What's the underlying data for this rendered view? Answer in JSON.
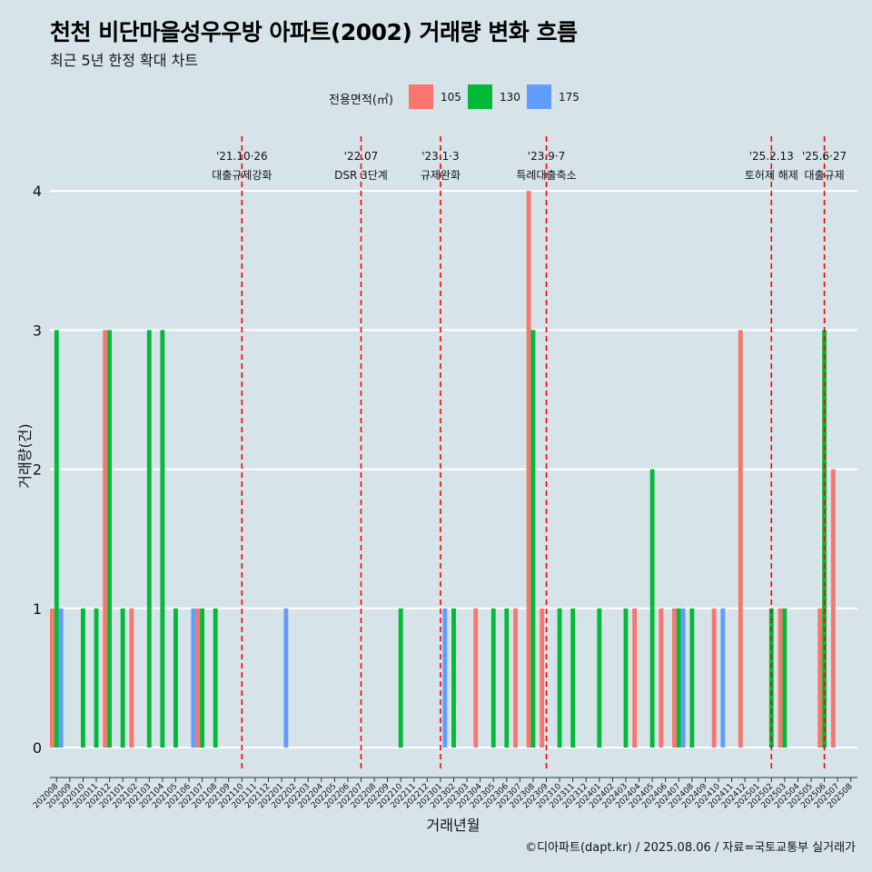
{
  "title": "천천 비단마을성우우방 아파트(2002) 거래량 변화 흐름",
  "subtitle": "최근 5년 한정 확대 차트",
  "caption": "©디아파트(dapt.kr) / 2025.08.06 / 자료=국토교통부 실거래가",
  "colors": {
    "105": "#f8766d",
    "130": "#00ba38",
    "175": "#619cff",
    "background": "#d6e4ea",
    "event_line": "#ff0000"
  },
  "chart_data": {
    "type": "bar",
    "title": "천천 비단마을성우우방 아파트(2002) 거래량 변화 흐름",
    "subtitle": "최근 5년 한정 확대 차트",
    "xlabel": "거래년월",
    "ylabel": "거래량(건)",
    "ylim": [
      0,
      4
    ],
    "yticks": [
      0,
      1,
      2,
      3,
      4
    ],
    "grid": "horizontal",
    "legend": {
      "title": "전용면적(㎡)",
      "position": "top",
      "entries": [
        "105",
        "130",
        "175"
      ]
    },
    "categories": [
      "202008",
      "202009",
      "202010",
      "202011",
      "202012",
      "202101",
      "202102",
      "202103",
      "202104",
      "202105",
      "202106",
      "202107",
      "202108",
      "202109",
      "202110",
      "202111",
      "202112",
      "202201",
      "202202",
      "202203",
      "202204",
      "202205",
      "202206",
      "202207",
      "202208",
      "202209",
      "202210",
      "202211",
      "202212",
      "202301",
      "202302",
      "202303",
      "202304",
      "202305",
      "202306",
      "202307",
      "202308",
      "202309",
      "202310",
      "202311",
      "202312",
      "202401",
      "202402",
      "202403",
      "202404",
      "202405",
      "202406",
      "202407",
      "202408",
      "202409",
      "202410",
      "202411",
      "202412",
      "202501",
      "202502",
      "202503",
      "202504",
      "202505",
      "202506",
      "202507",
      "202508"
    ],
    "series": [
      {
        "name": "105",
        "values": [
          1,
          0,
          0,
          0,
          3,
          0,
          1,
          0,
          0,
          0,
          0,
          1,
          0,
          0,
          0,
          0,
          0,
          0,
          0,
          0,
          0,
          0,
          0,
          0,
          0,
          0,
          0,
          0,
          0,
          0,
          0,
          0,
          1,
          0,
          0,
          1,
          4,
          1,
          0,
          0,
          0,
          0,
          0,
          0,
          1,
          0,
          1,
          1,
          0,
          0,
          1,
          0,
          3,
          0,
          0,
          1,
          0,
          0,
          1,
          2,
          0
        ]
      },
      {
        "name": "130",
        "values": [
          3,
          0,
          1,
          1,
          3,
          1,
          0,
          3,
          3,
          1,
          0,
          1,
          1,
          0,
          0,
          0,
          0,
          0,
          0,
          0,
          0,
          0,
          0,
          0,
          0,
          0,
          1,
          0,
          0,
          0,
          1,
          0,
          0,
          1,
          1,
          0,
          3,
          0,
          1,
          1,
          0,
          1,
          0,
          1,
          0,
          2,
          0,
          1,
          1,
          0,
          0,
          0,
          0,
          0,
          1,
          1,
          0,
          0,
          3,
          0,
          0
        ]
      },
      {
        "name": "175",
        "values": [
          1,
          0,
          0,
          0,
          0,
          0,
          0,
          0,
          0,
          0,
          1,
          0,
          0,
          0,
          0,
          0,
          0,
          1,
          0,
          0,
          0,
          0,
          0,
          0,
          0,
          0,
          0,
          0,
          0,
          1,
          0,
          0,
          0,
          0,
          0,
          0,
          0,
          0,
          0,
          0,
          0,
          0,
          0,
          0,
          0,
          0,
          0,
          1,
          0,
          0,
          1,
          0,
          0,
          0,
          0,
          0,
          0,
          0,
          0,
          0,
          0
        ]
      }
    ],
    "events": [
      {
        "date": "'21.10·26",
        "label": "대출규제강화",
        "month": "202110"
      },
      {
        "date": "'22.07",
        "label": "DSR 3단계",
        "month": "202207"
      },
      {
        "date": "'23.1·3",
        "label": "규제완화",
        "month": "202301"
      },
      {
        "date": "'23.9·7",
        "label": "특례대출축소",
        "month": "202309"
      },
      {
        "date": "'25.2.13",
        "label": "토허제 해제",
        "month": "202502"
      },
      {
        "date": "'25.6·27",
        "label": "대출규제",
        "month": "202506"
      }
    ]
  }
}
